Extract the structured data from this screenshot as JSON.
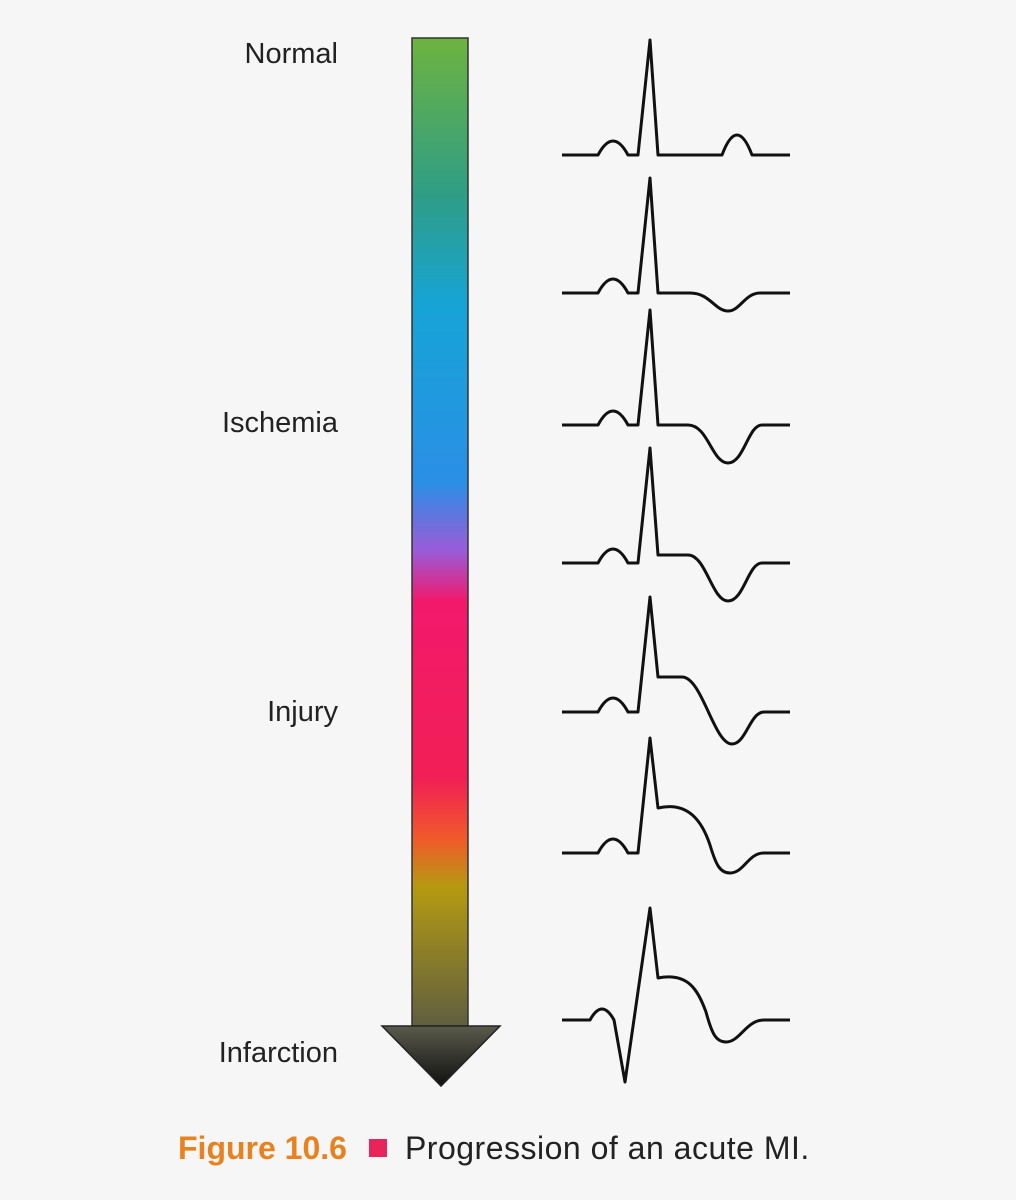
{
  "stages": [
    "Normal",
    "Ischemia",
    "Injury",
    "Infarction"
  ],
  "caption": {
    "figure": "Figure 10.6",
    "text": "Progression of an acute MI."
  }
}
